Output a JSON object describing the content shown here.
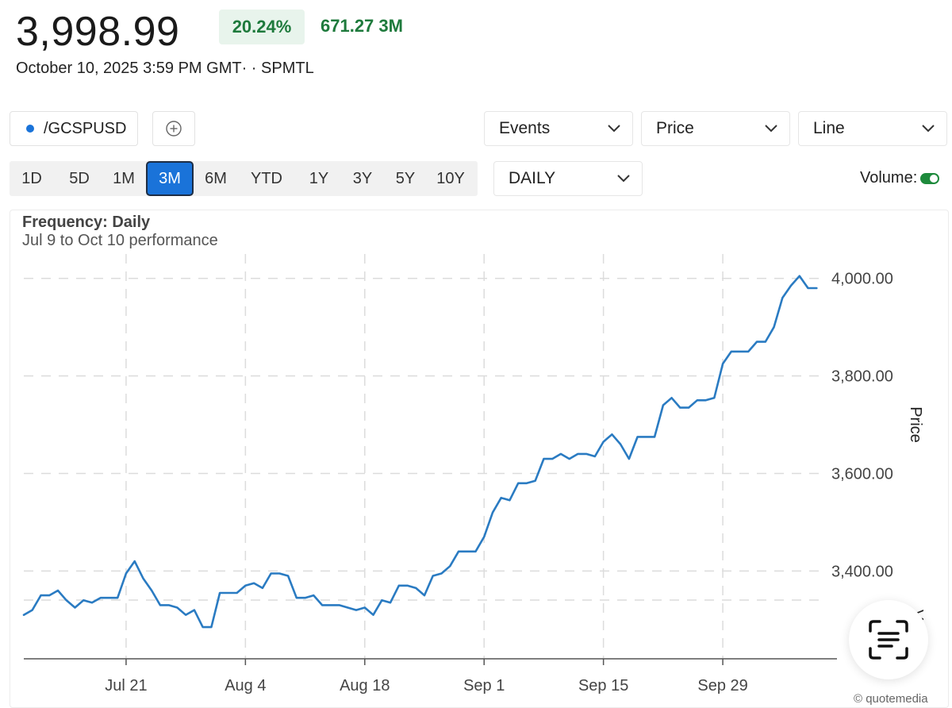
{
  "header": {
    "last_price": "3,998.99",
    "change_pct": "20.24%",
    "change_abs": "671.27 3M",
    "timestamp": "October 10, 2025 3:59 PM GMT· · SPMTL"
  },
  "symbol": {
    "name": "/GCSPUSD",
    "color": "#1a73d9"
  },
  "dropdowns": {
    "events": "Events",
    "price": "Price",
    "line": "Line",
    "interval": "DAILY"
  },
  "ranges": [
    "1D",
    "5D",
    "1M",
    "3M",
    "6M",
    "YTD",
    "1Y",
    "3Y",
    "5Y",
    "10Y"
  ],
  "active_range": "3M",
  "volume": {
    "label": "Volume:",
    "enabled": true
  },
  "chart_meta": {
    "frequency": "Frequency: Daily",
    "performance": "Jul 9 to Oct 10 performance",
    "credit": "© quotemedia",
    "cut_label": "Vo"
  },
  "chart_data": {
    "type": "line",
    "title": "",
    "ylabel": "Price",
    "xlabel": "",
    "ylim": [
      3220,
      4050
    ],
    "y_ticks": [
      3400,
      3600,
      3800,
      4000
    ],
    "y_tick_labels": [
      "3,400.00",
      "3,600.00",
      "3,800.00",
      "4,000.00"
    ],
    "x_ticks": [
      "2025-07-21",
      "2025-08-04",
      "2025-08-18",
      "2025-09-01",
      "2025-09-15",
      "2025-09-29"
    ],
    "x_tick_labels": [
      "Jul 21",
      "Aug 4",
      "Aug 18",
      "Sep 1",
      "Sep 15",
      "Sep 29"
    ],
    "x_range": [
      "2025-07-09",
      "2025-10-11"
    ],
    "grid": true,
    "line_color": "#2a7bc2",
    "series": [
      {
        "x": [
          "2025-07-09",
          "2025-07-10",
          "2025-07-11",
          "2025-07-12",
          "2025-07-13",
          "2025-07-14",
          "2025-07-15",
          "2025-07-16",
          "2025-07-17",
          "2025-07-18",
          "2025-07-19",
          "2025-07-20",
          "2025-07-21",
          "2025-07-22",
          "2025-07-23",
          "2025-07-24",
          "2025-07-25",
          "2025-07-26",
          "2025-07-27",
          "2025-07-28",
          "2025-07-29",
          "2025-07-30",
          "2025-07-31",
          "2025-08-01",
          "2025-08-02",
          "2025-08-03",
          "2025-08-04",
          "2025-08-05",
          "2025-08-06",
          "2025-08-07",
          "2025-08-08",
          "2025-08-09",
          "2025-08-10",
          "2025-08-11",
          "2025-08-12",
          "2025-08-13",
          "2025-08-14",
          "2025-08-15",
          "2025-08-16",
          "2025-08-17",
          "2025-08-18",
          "2025-08-19",
          "2025-08-20",
          "2025-08-21",
          "2025-08-22",
          "2025-08-23",
          "2025-08-24",
          "2025-08-25",
          "2025-08-26",
          "2025-08-27",
          "2025-08-28",
          "2025-08-29",
          "2025-08-30",
          "2025-08-31",
          "2025-09-01",
          "2025-09-02",
          "2025-09-03",
          "2025-09-04",
          "2025-09-05",
          "2025-09-06",
          "2025-09-07",
          "2025-09-08",
          "2025-09-09",
          "2025-09-10",
          "2025-09-11",
          "2025-09-12",
          "2025-09-13",
          "2025-09-14",
          "2025-09-15",
          "2025-09-16",
          "2025-09-17",
          "2025-09-18",
          "2025-09-19",
          "2025-09-20",
          "2025-09-21",
          "2025-09-22",
          "2025-09-23",
          "2025-09-24",
          "2025-09-25",
          "2025-09-26",
          "2025-09-27",
          "2025-09-28",
          "2025-09-29",
          "2025-09-30",
          "2025-10-01",
          "2025-10-02",
          "2025-10-03",
          "2025-10-04",
          "2025-10-05",
          "2025-10-06",
          "2025-10-07",
          "2025-10-08",
          "2025-10-09",
          "2025-10-10"
        ],
        "values": [
          3310,
          3320,
          3350,
          3350,
          3360,
          3340,
          3325,
          3340,
          3335,
          3345,
          3345,
          3345,
          3395,
          3420,
          3385,
          3360,
          3330,
          3330,
          3325,
          3310,
          3320,
          3285,
          3285,
          3355,
          3355,
          3355,
          3370,
          3375,
          3365,
          3395,
          3395,
          3390,
          3345,
          3345,
          3350,
          3330,
          3330,
          3330,
          3325,
          3320,
          3325,
          3310,
          3340,
          3335,
          3370,
          3370,
          3365,
          3350,
          3390,
          3395,
          3410,
          3440,
          3440,
          3440,
          3470,
          3520,
          3550,
          3545,
          3580,
          3580,
          3585,
          3630,
          3630,
          3640,
          3630,
          3640,
          3640,
          3635,
          3665,
          3680,
          3660,
          3630,
          3675,
          3675,
          3675,
          3740,
          3755,
          3735,
          3735,
          3750,
          3750,
          3755,
          3825,
          3850,
          3850,
          3850,
          3870,
          3870,
          3900,
          3960,
          3985,
          4005,
          3980,
          3980
        ]
      }
    ]
  }
}
